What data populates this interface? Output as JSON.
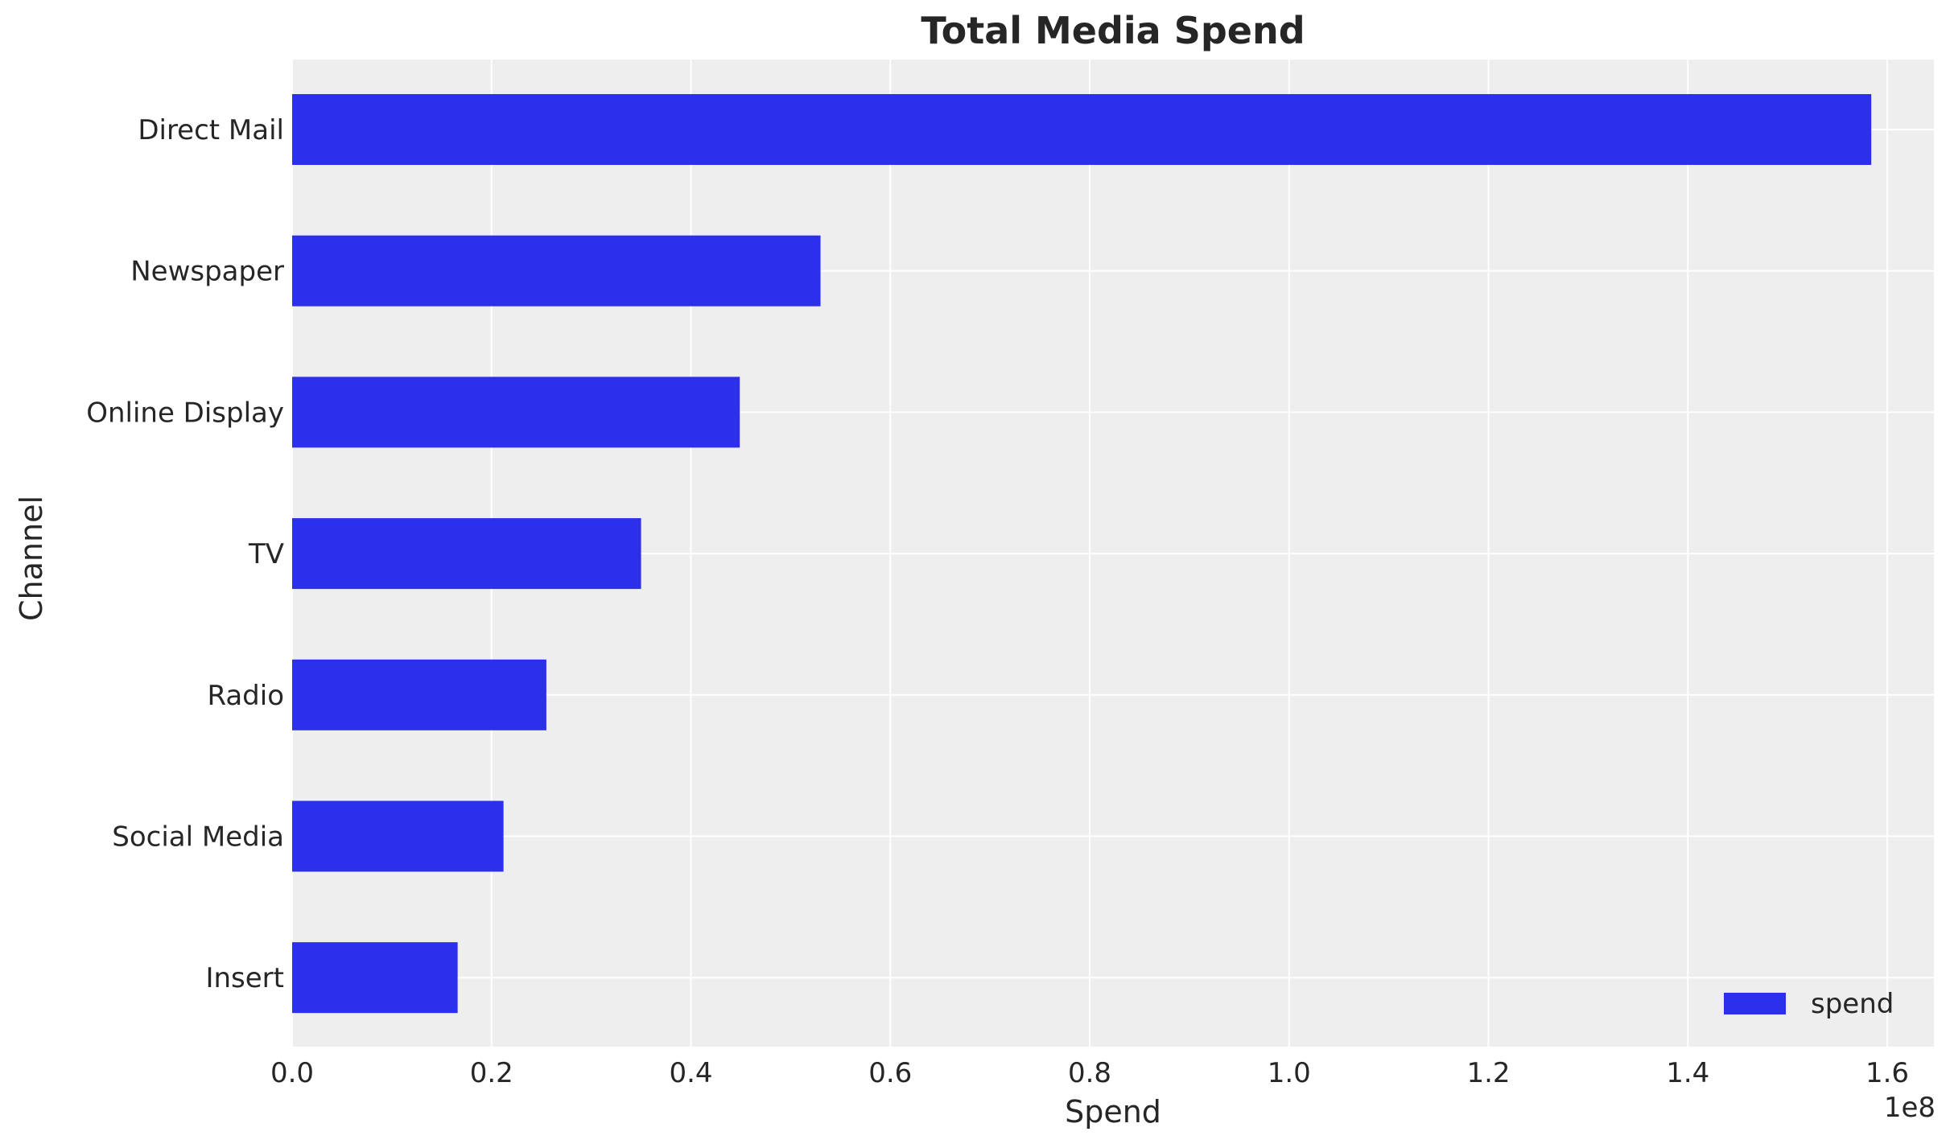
{
  "chart_data": {
    "type": "bar",
    "orientation": "horizontal",
    "title": "Total Media Spend",
    "xlabel": "Spend",
    "ylabel": "Channel",
    "x_offset_label": "1e8",
    "categories": [
      "Direct Mail",
      "Newspaper",
      "Online Display",
      "TV",
      "Radio",
      "Social Media",
      "Insert"
    ],
    "series": [
      {
        "name": "spend",
        "values": [
          158400000,
          53000000,
          44900000,
          35000000,
          25500000,
          21200000,
          16600000
        ]
      }
    ],
    "xlim": [
      0,
      166000000
    ],
    "xticks": [
      0,
      20000000,
      40000000,
      60000000,
      80000000,
      100000000,
      120000000,
      140000000,
      160000000
    ],
    "xtick_labels": [
      "0.0",
      "0.2",
      "0.4",
      "0.6",
      "0.8",
      "1.0",
      "1.2",
      "1.4",
      "1.6"
    ],
    "grid": true,
    "legend": "bottom-right",
    "colors": {
      "bar": "#2c2fec",
      "background": "#eeeeee",
      "grid": "#ffffff"
    }
  }
}
